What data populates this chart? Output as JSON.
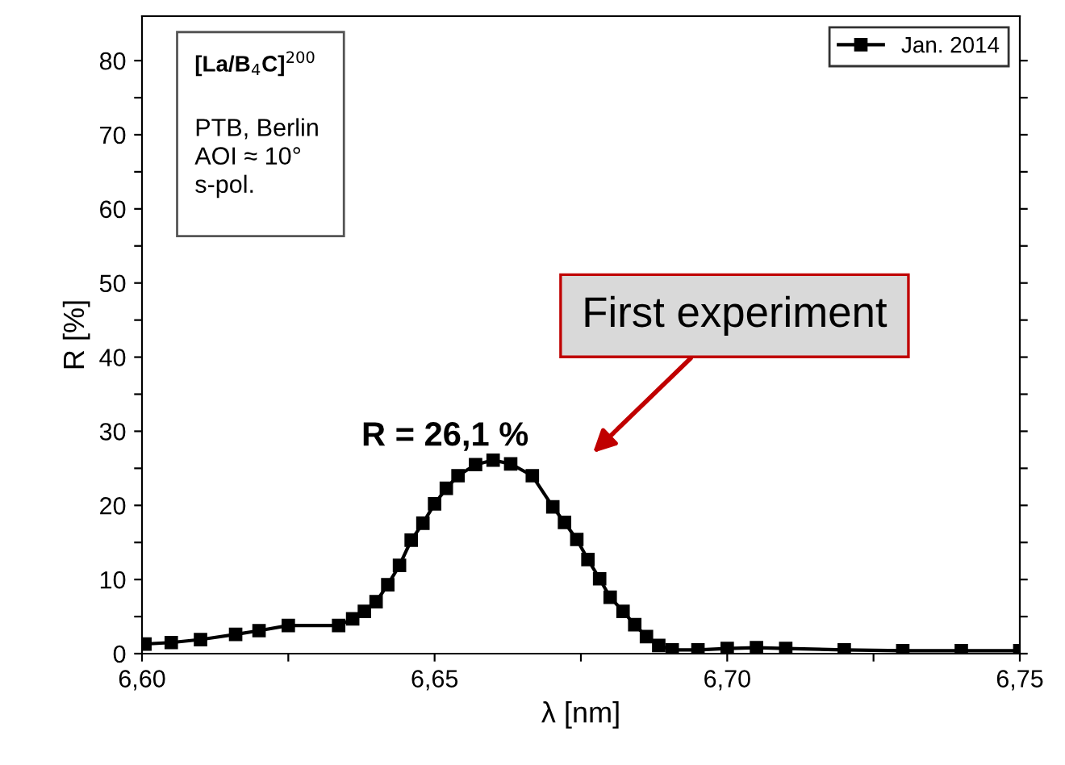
{
  "chart_data": {
    "type": "line",
    "xlabel": "λ [nm]",
    "ylabel": "R [%]",
    "x": [
      6.6005,
      6.605,
      6.61,
      6.616,
      6.62,
      6.625,
      6.6336,
      6.636,
      6.638,
      6.64,
      6.642,
      6.644,
      6.646,
      6.648,
      6.65,
      6.652,
      6.654,
      6.657,
      6.66,
      6.663,
      6.6667,
      6.6702,
      6.6722,
      6.6743,
      6.6762,
      6.6782,
      6.68,
      6.6822,
      6.6842,
      6.6862,
      6.6883,
      6.6906,
      6.695,
      6.7,
      6.705,
      6.71,
      6.72,
      6.73,
      6.74,
      6.75
    ],
    "series": [
      {
        "name": "Jan. 2014",
        "color": "#000000",
        "marker": "square",
        "line_style": "solid",
        "values": [
          1.3,
          1.5,
          1.9,
          2.6,
          3.1,
          3.8,
          3.8,
          4.7,
          5.7,
          7.0,
          9.3,
          11.9,
          15.3,
          17.6,
          20.2,
          22.3,
          24.0,
          25.5,
          26.1,
          25.6,
          24.0,
          19.8,
          17.7,
          15.4,
          12.7,
          10.1,
          7.6,
          5.7,
          3.9,
          2.3,
          1.1,
          0.5,
          0.5,
          0.7,
          0.8,
          0.7,
          0.5,
          0.4,
          0.4,
          0.4
        ]
      }
    ],
    "xlim": [
      6.6,
      6.75
    ],
    "xticks": [
      {
        "value": 6.6,
        "label": "6,60"
      },
      {
        "value": 6.625,
        "label": null
      },
      {
        "value": 6.65,
        "label": "6,65"
      },
      {
        "value": 6.675,
        "label": null
      },
      {
        "value": 6.7,
        "label": "6,70"
      },
      {
        "value": 6.725,
        "label": null
      },
      {
        "value": 6.75,
        "label": "6,75"
      }
    ],
    "ylim": [
      0,
      86
    ],
    "yticks": [
      0,
      {
        "value": 5,
        "label": null
      },
      10,
      {
        "value": 15,
        "label": null
      },
      20,
      {
        "value": 25,
        "label": null
      },
      30,
      {
        "value": 35,
        "label": null
      },
      40,
      {
        "value": 45,
        "label": null
      },
      50,
      {
        "value": 55,
        "label": null
      },
      60,
      {
        "value": 65,
        "label": null
      },
      70,
      {
        "value": 75,
        "label": null
      },
      80
    ],
    "grid": false,
    "legend": "top right",
    "annotations": [
      "[La/B$_{4}$C]$^{200}$",
      "PTB, Berlin\nAOI ≈ 10°\ns-pol.",
      "R = 26,1 %",
      "First experiment"
    ]
  }
}
